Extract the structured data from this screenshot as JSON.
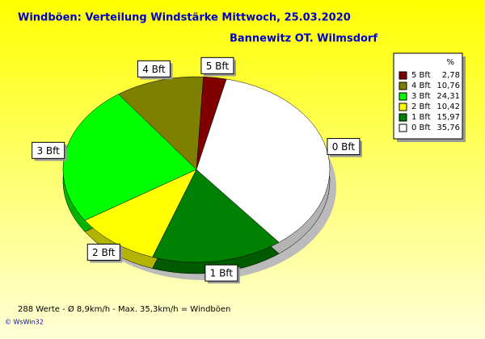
{
  "chart_data": {
    "type": "pie",
    "title": "Windböen: Verteilung Windstärke  Mittwoch, 25.03.2020",
    "subtitle": "Bannewitz OT. Wilmsdorf",
    "legend_header": "%",
    "categories": [
      "5 Bft",
      "4 Bft",
      "3 Bft",
      "2 Bft",
      "1 Bft",
      "0 Bft"
    ],
    "values": [
      2.78,
      10.76,
      24.31,
      10.42,
      15.97,
      35.76
    ],
    "value_labels": [
      "2,78",
      "10,76",
      "24,31",
      "10,42",
      "15,97",
      "35,76"
    ],
    "colors": [
      "#800000",
      "#808000",
      "#00ff00",
      "#ffff00",
      "#008000",
      "#ffffff"
    ],
    "footer": "288 Werte   -   Ø 8,9km/h  -  Max. 35,3km/h = Windböen",
    "credit": "© WsWin32"
  }
}
